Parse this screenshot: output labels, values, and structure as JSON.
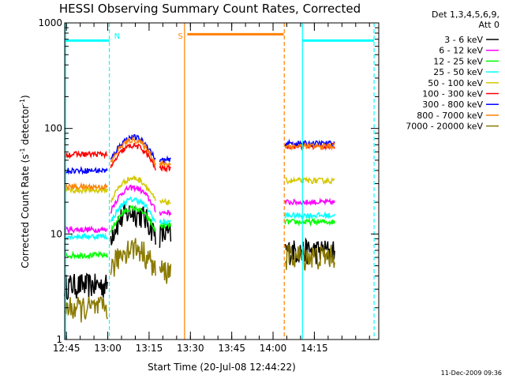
{
  "chart_data": {
    "type": "line",
    "title": "HESSI Observing Summary Count Rates, Corrected",
    "xlabel": "Start Time (20-Jul-08 12:44:22)",
    "ylabel_main": "Corrected Count Rate (s",
    "ylabel_sup1": "-1",
    "ylabel_mid": " detector",
    "ylabel_sup2": "-1",
    "ylabel_end": ")",
    "y_scale": "log",
    "xlim": [
      0,
      114
    ],
    "ylim": [
      1,
      1000
    ],
    "x_ticks": [
      {
        "t": 0.63,
        "label": "12:45"
      },
      {
        "t": 15.63,
        "label": "13:00"
      },
      {
        "t": 30.63,
        "label": "13:15"
      },
      {
        "t": 45.63,
        "label": "13:30"
      },
      {
        "t": 60.63,
        "label": "13:45"
      },
      {
        "t": 75.63,
        "label": "14:00"
      },
      {
        "t": 90.63,
        "label": "14:15"
      }
    ],
    "y_ticks": [
      {
        "v": 1,
        "label": "1"
      },
      {
        "v": 10,
        "label": "10"
      },
      {
        "v": 100,
        "label": "100"
      },
      {
        "v": 1000,
        "label": "1000"
      }
    ],
    "legend": {
      "header1": "Det 1,3,4,5,6,9,",
      "header2": "Att 0",
      "position": "right, outside plot"
    },
    "series": [
      {
        "name": "3 - 6 keV",
        "color": "#000000"
      },
      {
        "name": "6 - 12 keV",
        "color": "#ff00ff"
      },
      {
        "name": "12 - 25 keV",
        "color": "#00ff00"
      },
      {
        "name": "25 - 50 keV",
        "color": "#00ffff"
      },
      {
        "name": "50 - 100 keV",
        "color": "#d4c800"
      },
      {
        "name": "100 - 300 keV",
        "color": "#ff0000"
      },
      {
        "name": "300 - 800 keV",
        "color": "#0000ff"
      },
      {
        "name": "800 - 7000 keV",
        "color": "#ff8000"
      },
      {
        "name": "7000 - 20000 keV",
        "color": "#8a7a00"
      }
    ],
    "segments": [
      {
        "t0": 0,
        "t1": 15.5,
        "values": [
          3.3,
          11,
          6.3,
          9.5,
          26,
          57,
          40,
          28,
          2.0
        ]
      },
      {
        "t0": 16.7,
        "t1": 33,
        "values": [
          13,
          22,
          14,
          17,
          27,
          55,
          66,
          62,
          6.0
        ]
      },
      {
        "t0": 34.5,
        "t1": 38.5,
        "values": [
          10,
          16,
          12,
          13,
          20,
          42,
          50,
          46,
          4.5
        ]
      },
      {
        "t0": 80,
        "t1": 98,
        "values": [
          7,
          20,
          13,
          15,
          32,
          68,
          72,
          68,
          6.2
        ]
      }
    ],
    "orbit_lines": [
      {
        "t": 0.3,
        "kind": "solid",
        "color": "#00ffff"
      },
      {
        "t": 16.2,
        "kind": "dashed",
        "color": "#00ffff"
      },
      {
        "t": 43.5,
        "kind": "solid",
        "color": "#ff8000"
      },
      {
        "t": 79.7,
        "kind": "dashed",
        "color": "#ff8000"
      },
      {
        "t": 86.3,
        "kind": "solid",
        "color": "#00ffff"
      },
      {
        "t": 112.3,
        "kind": "dashed",
        "color": "#00ffff"
      }
    ],
    "night_bars": [
      {
        "t0": 0.3,
        "t1": 16.2,
        "v": 680,
        "color": "#00ffff"
      },
      {
        "t0": 86.3,
        "t1": 112.3,
        "v": 680,
        "color": "#00ffff"
      }
    ],
    "saa_bar": {
      "t0": 44.5,
      "t1": 79.5,
      "v": 780,
      "color": "#ff8000"
    },
    "markers": [
      {
        "t": 19,
        "label": "N",
        "color": "#00ffff"
      },
      {
        "t": 42,
        "label": "S",
        "color": "#ff8000"
      }
    ],
    "stamp": "11-Dec-2009 09:36"
  }
}
